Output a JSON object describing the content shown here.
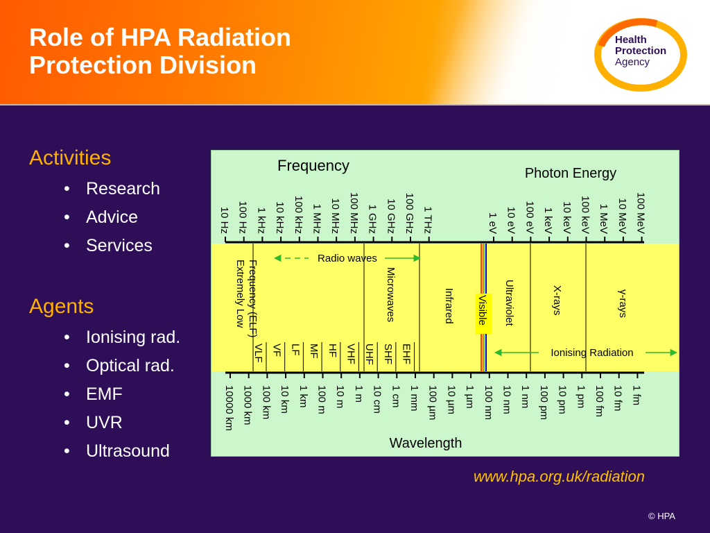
{
  "header": {
    "title_line1": "Role of HPA Radiation",
    "title_line2": "Protection Division"
  },
  "logo": {
    "line1": "Health",
    "line2": "Protection",
    "line3": "Agency"
  },
  "activities": {
    "heading": "Activities",
    "items": [
      "Research",
      "Advice",
      "Services"
    ]
  },
  "agents": {
    "heading": "Agents",
    "items": [
      "Ionising rad.",
      "Optical rad.",
      "EMF",
      "UVR",
      "Ultrasound"
    ]
  },
  "diagram": {
    "frequency_label": "Frequency",
    "photon_energy_label": "Photon Energy",
    "wavelength_label": "Wavelength",
    "frequency_ticks": [
      "10 Hz",
      "100 Hz",
      "1 kHz",
      "10 kHz",
      "100 kHz",
      "1 MHz",
      "10 MHz",
      "100 MHz",
      "1 GHz",
      "10 GHz",
      "100 GHz",
      "1 THz"
    ],
    "energy_ticks": [
      "1 eV",
      "10 eV",
      "100 eV",
      "1 keV",
      "10 keV",
      "100 keV",
      "1 MeV",
      "10 MeV",
      "100 MeV"
    ],
    "wavelength_ticks": [
      "10000 km",
      "1000 km",
      "100 km",
      "10 km",
      "1 km",
      "100 m",
      "10 m",
      "1 m",
      "10 cm",
      "1 cm",
      "1 mm",
      "100 µm",
      "10 µm",
      "1 µm",
      "100 nm",
      "10 nm",
      "1 nm",
      "100 pm",
      "10 pm",
      "1 pm",
      "100 fm",
      "10 fm",
      "1 fm"
    ],
    "bands": [
      "VLF",
      "VF",
      "LF",
      "MF",
      "HF",
      "VHF",
      "UHF",
      "SHF",
      "EHF"
    ],
    "regions": {
      "elf": "Extremely Low Frequency (ELF)",
      "microwaves": "Microwaves",
      "infrared": "Infrared",
      "visible": "Visible",
      "ultraviolet": "Ultraviolet",
      "xrays": "X-rays",
      "gamma": "γ-rays"
    },
    "radio_waves_label": "Radio waves",
    "ionising_label": "Ionising Radiation"
  },
  "footer": {
    "url": "www.hpa.org.uk/radiation",
    "copyright": "© HPA"
  }
}
